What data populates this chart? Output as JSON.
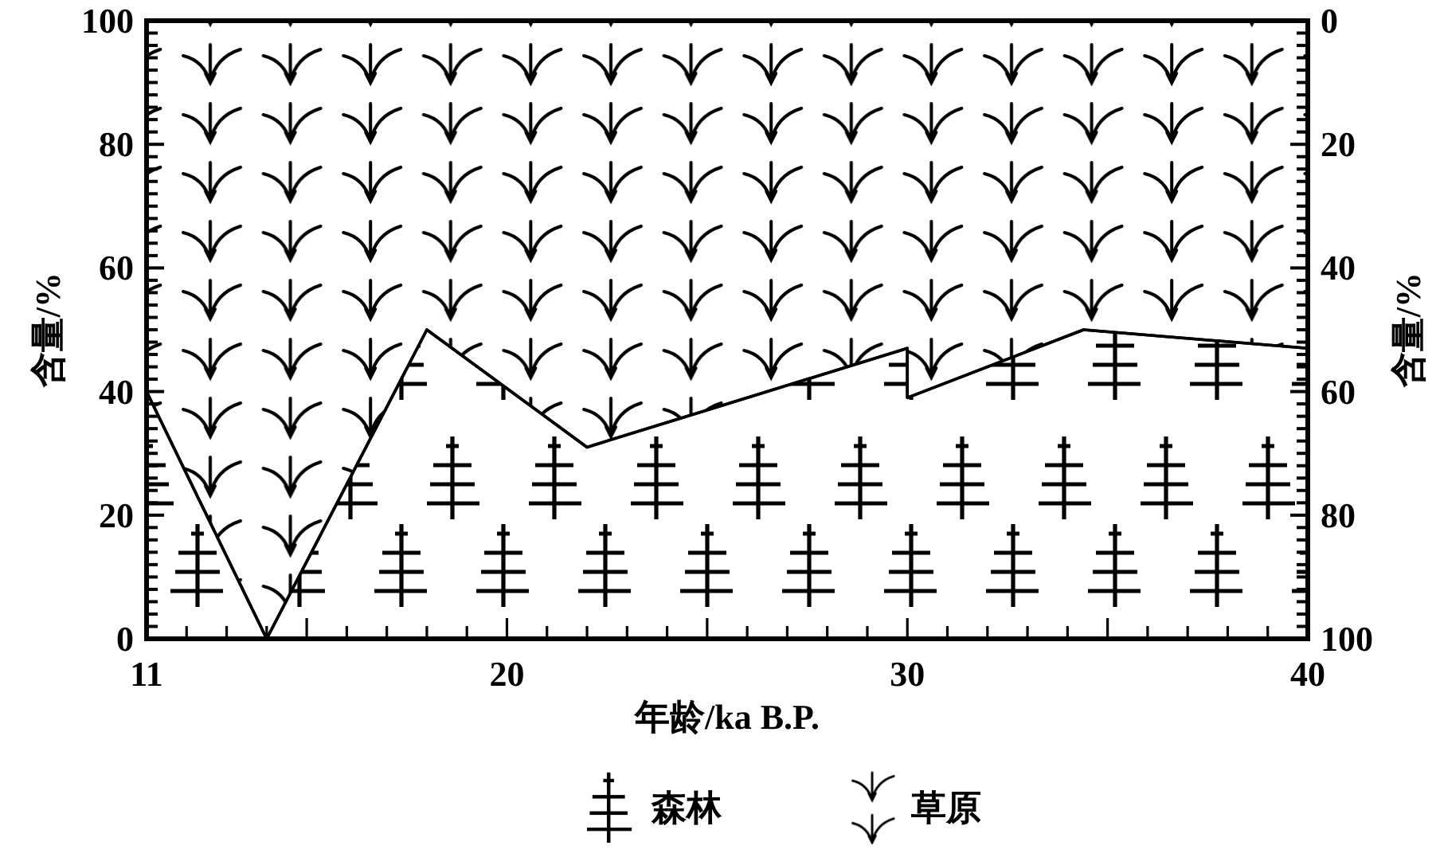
{
  "chart_data": {
    "type": "area",
    "xlabel": "年龄/ka B.P.",
    "ylabel": "含量/%",
    "y2label": "含量/%",
    "x": [
      11,
      14,
      18,
      22,
      30,
      30,
      34.4,
      40
    ],
    "series": [
      {
        "name": "森林",
        "color": "#000000",
        "values": [
          40,
          0,
          50,
          31,
          47,
          39,
          50,
          47
        ]
      },
      {
        "name": "草原",
        "color": "#000000",
        "axis": "y2",
        "values": [
          60,
          100,
          50,
          69,
          53,
          61,
          50,
          53
        ]
      }
    ],
    "xlim": [
      11,
      40
    ],
    "xticks": [
      11,
      {
        "value": 12,
        "label": null
      },
      {
        "value": 13,
        "label": null
      },
      {
        "value": 14,
        "label": null
      },
      {
        "value": 15,
        "label": null
      },
      {
        "value": 16,
        "label": null
      },
      {
        "value": 17,
        "label": null
      },
      {
        "value": 18,
        "label": null
      },
      {
        "value": 19,
        "label": null
      },
      20,
      {
        "value": 21,
        "label": null
      },
      {
        "value": 22,
        "label": null
      },
      {
        "value": 23,
        "label": null
      },
      {
        "value": 24,
        "label": null
      },
      {
        "value": 25,
        "label": null
      },
      {
        "value": 26,
        "label": null
      },
      {
        "value": 27,
        "label": null
      },
      {
        "value": 28,
        "label": null
      },
      {
        "value": 29,
        "label": null
      },
      30,
      {
        "value": 31,
        "label": null
      },
      {
        "value": 32,
        "label": null
      },
      {
        "value": 33,
        "label": null
      },
      {
        "value": 34,
        "label": null
      },
      {
        "value": 35,
        "label": null
      },
      {
        "value": 36,
        "label": null
      },
      {
        "value": 37,
        "label": null
      },
      {
        "value": 38,
        "label": null
      },
      {
        "value": 39,
        "label": null
      },
      40
    ],
    "ylim": [
      0,
      100
    ],
    "yticks": [
      0,
      {
        "value": 2,
        "label": null
      },
      {
        "value": 4,
        "label": null
      },
      {
        "value": 6,
        "label": null
      },
      {
        "value": 8,
        "label": null
      },
      {
        "value": 10,
        "label": null
      },
      {
        "value": 12,
        "label": null
      },
      {
        "value": 14,
        "label": null
      },
      {
        "value": 16,
        "label": null
      },
      {
        "value": 18,
        "label": null
      },
      20,
      {
        "value": 22,
        "label": null
      },
      {
        "value": 24,
        "label": null
      },
      {
        "value": 26,
        "label": null
      },
      {
        "value": 28,
        "label": null
      },
      {
        "value": 30,
        "label": null
      },
      {
        "value": 32,
        "label": null
      },
      {
        "value": 34,
        "label": null
      },
      {
        "value": 36,
        "label": null
      },
      {
        "value": 38,
        "label": null
      },
      40,
      {
        "value": 42,
        "label": null
      },
      {
        "value": 44,
        "label": null
      },
      {
        "value": 46,
        "label": null
      },
      {
        "value": 48,
        "label": null
      },
      {
        "value": 50,
        "label": null
      },
      {
        "value": 52,
        "label": null
      },
      {
        "value": 54,
        "label": null
      },
      {
        "value": 56,
        "label": null
      },
      {
        "value": 58,
        "label": null
      },
      60,
      {
        "value": 62,
        "label": null
      },
      {
        "value": 64,
        "label": null
      },
      {
        "value": 66,
        "label": null
      },
      {
        "value": 68,
        "label": null
      },
      {
        "value": 70,
        "label": null
      },
      {
        "value": 72,
        "label": null
      },
      {
        "value": 74,
        "label": null
      },
      {
        "value": 76,
        "label": null
      },
      {
        "value": 78,
        "label": null
      },
      80,
      {
        "value": 82,
        "label": null
      },
      {
        "value": 84,
        "label": null
      },
      {
        "value": 86,
        "label": null
      },
      {
        "value": 88,
        "label": null
      },
      {
        "value": 90,
        "label": null
      },
      {
        "value": 92,
        "label": null
      },
      {
        "value": 94,
        "label": null
      },
      {
        "value": 96,
        "label": null
      },
      {
        "value": 98,
        "label": null
      },
      100
    ],
    "y2lim": [
      100,
      0
    ],
    "y2ticks": [
      0,
      {
        "value": 2,
        "label": null
      },
      {
        "value": 4,
        "label": null
      },
      {
        "value": 6,
        "label": null
      },
      {
        "value": 8,
        "label": null
      },
      {
        "value": 10,
        "label": null
      },
      {
        "value": 12,
        "label": null
      },
      {
        "value": 14,
        "label": null
      },
      {
        "value": 16,
        "label": null
      },
      {
        "value": 18,
        "label": null
      },
      20,
      {
        "value": 22,
        "label": null
      },
      {
        "value": 24,
        "label": null
      },
      {
        "value": 26,
        "label": null
      },
      {
        "value": 28,
        "label": null
      },
      {
        "value": 30,
        "label": null
      },
      {
        "value": 32,
        "label": null
      },
      {
        "value": 34,
        "label": null
      },
      {
        "value": 36,
        "label": null
      },
      {
        "value": 38,
        "label": null
      },
      40,
      {
        "value": 42,
        "label": null
      },
      {
        "value": 44,
        "label": null
      },
      {
        "value": 46,
        "label": null
      },
      {
        "value": 48,
        "label": null
      },
      {
        "value": 50,
        "label": null
      },
      {
        "value": 52,
        "label": null
      },
      {
        "value": 54,
        "label": null
      },
      {
        "value": 56,
        "label": null
      },
      {
        "value": 58,
        "label": null
      },
      60,
      {
        "value": 62,
        "label": null
      },
      {
        "value": 64,
        "label": null
      },
      {
        "value": 66,
        "label": null
      },
      {
        "value": 68,
        "label": null
      },
      {
        "value": 70,
        "label": null
      },
      {
        "value": 72,
        "label": null
      },
      {
        "value": 74,
        "label": null
      },
      {
        "value": 76,
        "label": null
      },
      {
        "value": 78,
        "label": null
      },
      80,
      {
        "value": 82,
        "label": null
      },
      {
        "value": 84,
        "label": null
      },
      {
        "value": 86,
        "label": null
      },
      {
        "value": 88,
        "label": null
      },
      {
        "value": 90,
        "label": null
      },
      {
        "value": 92,
        "label": null
      },
      {
        "value": 94,
        "label": null
      },
      {
        "value": 96,
        "label": null
      },
      {
        "value": 98,
        "label": null
      },
      100
    ],
    "legend": "bottom"
  }
}
